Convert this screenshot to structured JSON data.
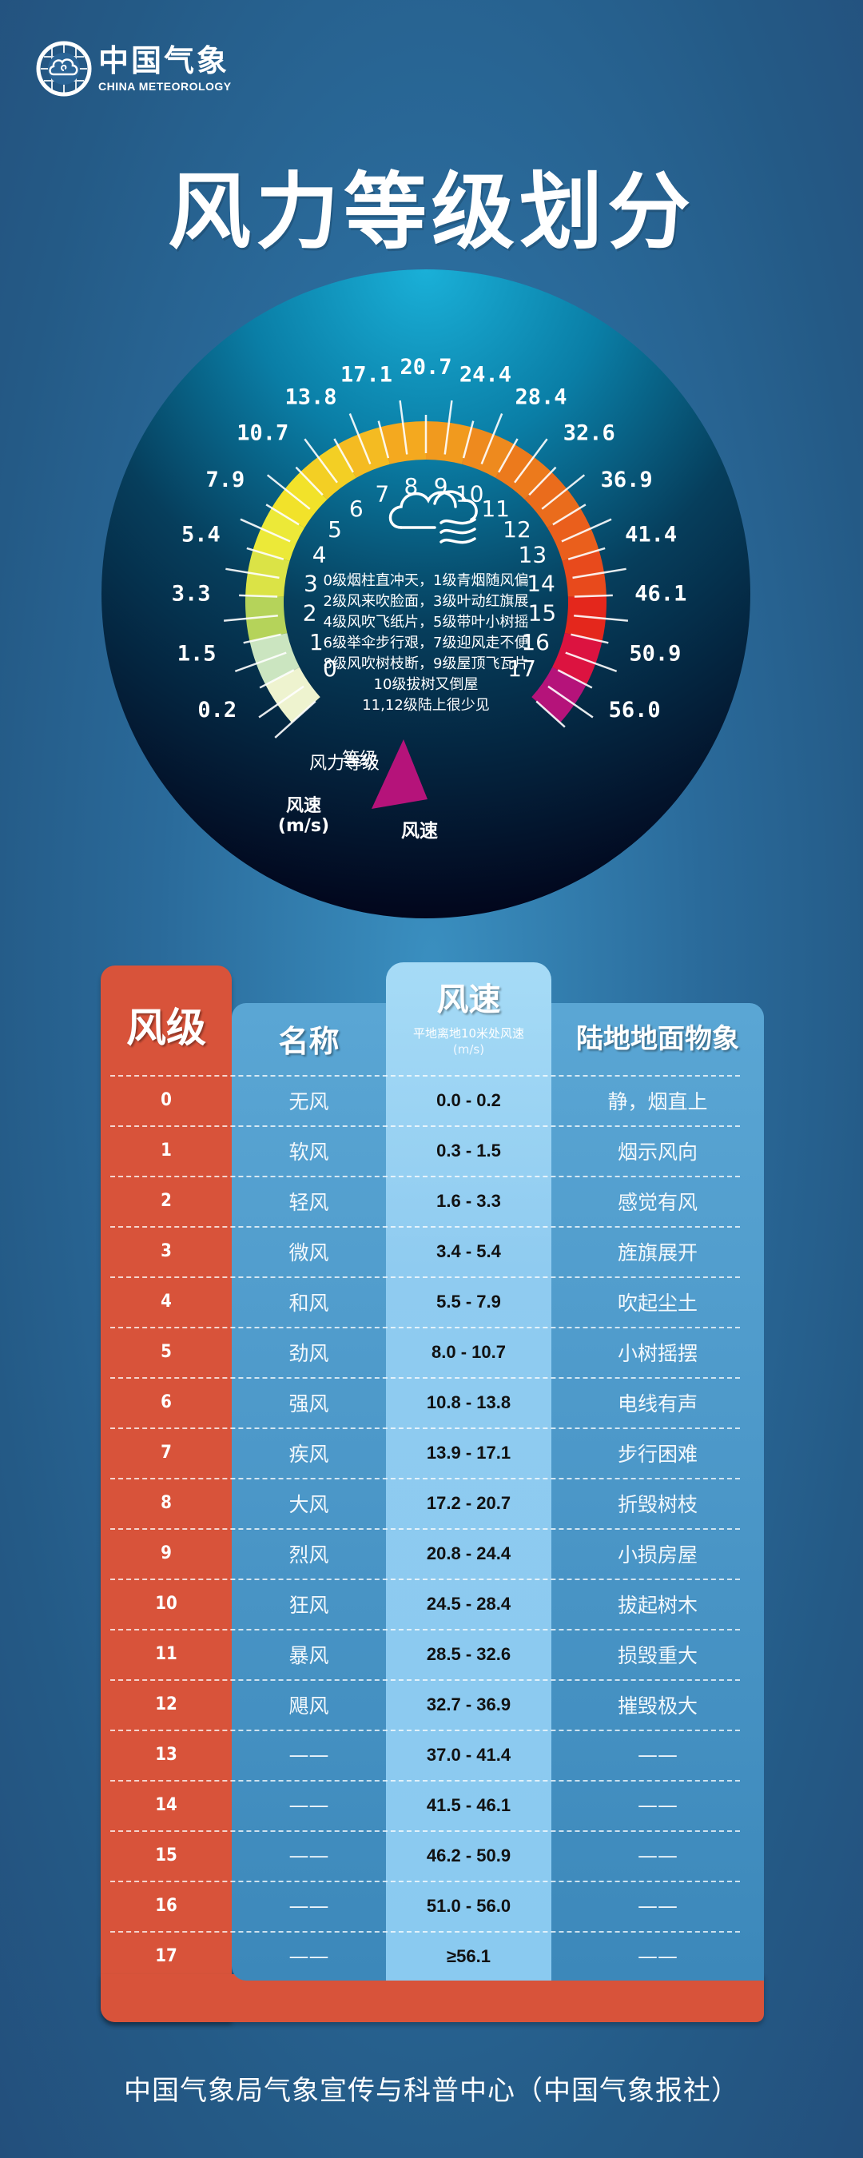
{
  "logo": {
    "cn": "中国气象",
    "en": "CHINA METEOROLOGY",
    "icon": "cma-globe-cloud-icon"
  },
  "title": "风力等级划分",
  "gauge": {
    "speed_ticks": [
      "0.2",
      "1.5",
      "3.3",
      "5.4",
      "7.9",
      "10.7",
      "13.8",
      "17.1",
      "20.7",
      "24.4",
      "28.4",
      "32.6",
      "36.9",
      "41.4",
      "46.1",
      "50.9",
      "56.0"
    ],
    "levels": [
      "0",
      "1",
      "2",
      "3",
      "4",
      "5",
      "6",
      "7",
      "8",
      "9",
      "10",
      "11",
      "12",
      "13",
      "14",
      "15",
      "16",
      "17"
    ],
    "band_colors": [
      "#eef3cf",
      "#cbe5c0",
      "#b5d35a",
      "#dbe346",
      "#ece938",
      "#f2e22a",
      "#f3cf24",
      "#f4bb22",
      "#f4a91f",
      "#f19a1e",
      "#ee8a1e",
      "#ec7a1c",
      "#ea6c1c",
      "#ea5f1c",
      "#e84a1c",
      "#e4271c",
      "#dc1340",
      "#b5137a"
    ],
    "label_level": "风力等级",
    "label_speed_left": "风速",
    "label_speed_unit": "(m/s)",
    "label_level_right": "等级",
    "label_speed_right": "风速",
    "center_icon": "cloud-wind-icon",
    "rhyme": [
      "0级烟柱直冲天，1级青烟随风偏",
      "2级风来吹脸面，3级叶动红旗展",
      "4级风吹飞纸片，5级带叶小树摇",
      "6级举伞步行艰，7级迎风走不便",
      "8级风吹树枝断，9级屋顶飞瓦片",
      "10级拔树又倒屋",
      "11,12级陆上很少见"
    ]
  },
  "table": {
    "headers": {
      "level": "风级",
      "name": "名称",
      "speed": "风速",
      "speed_sub": "平地离地10米处风速",
      "speed_unit": "(m/s)",
      "phenomena": "陆地地面物象"
    },
    "rows": [
      {
        "level": "0",
        "name": "无风",
        "speed": "0.0 - 0.2",
        "phenomena": "静，烟直上"
      },
      {
        "level": "1",
        "name": "软风",
        "speed": "0.3 - 1.5",
        "phenomena": "烟示风向"
      },
      {
        "level": "2",
        "name": "轻风",
        "speed": "1.6 - 3.3",
        "phenomena": "感觉有风"
      },
      {
        "level": "3",
        "name": "微风",
        "speed": "3.4 - 5.4",
        "phenomena": "旌旗展开"
      },
      {
        "level": "4",
        "name": "和风",
        "speed": "5.5 - 7.9",
        "phenomena": "吹起尘土"
      },
      {
        "level": "5",
        "name": "劲风",
        "speed": "8.0 - 10.7",
        "phenomena": "小树摇摆"
      },
      {
        "level": "6",
        "name": "强风",
        "speed": "10.8 - 13.8",
        "phenomena": "电线有声"
      },
      {
        "level": "7",
        "name": "疾风",
        "speed": "13.9 - 17.1",
        "phenomena": "步行困难"
      },
      {
        "level": "8",
        "name": "大风",
        "speed": "17.2 - 20.7",
        "phenomena": "折毁树枝"
      },
      {
        "level": "9",
        "name": "烈风",
        "speed": "20.8 - 24.4",
        "phenomena": "小损房屋"
      },
      {
        "level": "10",
        "name": "狂风",
        "speed": "24.5 - 28.4",
        "phenomena": "拔起树木"
      },
      {
        "level": "11",
        "name": "暴风",
        "speed": "28.5 - 32.6",
        "phenomena": "损毁重大"
      },
      {
        "level": "12",
        "name": "飓风",
        "speed": "32.7 - 36.9",
        "phenomena": "摧毁极大"
      },
      {
        "level": "13",
        "name": "——",
        "speed": "37.0 - 41.4",
        "phenomena": "——"
      },
      {
        "level": "14",
        "name": "——",
        "speed": "41.5 - 46.1",
        "phenomena": "——"
      },
      {
        "level": "15",
        "name": "——",
        "speed": "46.2 - 50.9",
        "phenomena": "——"
      },
      {
        "level": "16",
        "name": "——",
        "speed": "51.0 - 56.0",
        "phenomena": "——"
      },
      {
        "level": "17",
        "name": "——",
        "speed": "≥56.1",
        "phenomena": "——"
      }
    ]
  },
  "footer": "中国气象局气象宣传与科普中心（中国气象报社）",
  "colors": {
    "background": "#2a6a9a",
    "level_column": "#d8533a",
    "table_body": "#4b97c8",
    "speed_column": "#8fcbf0"
  }
}
